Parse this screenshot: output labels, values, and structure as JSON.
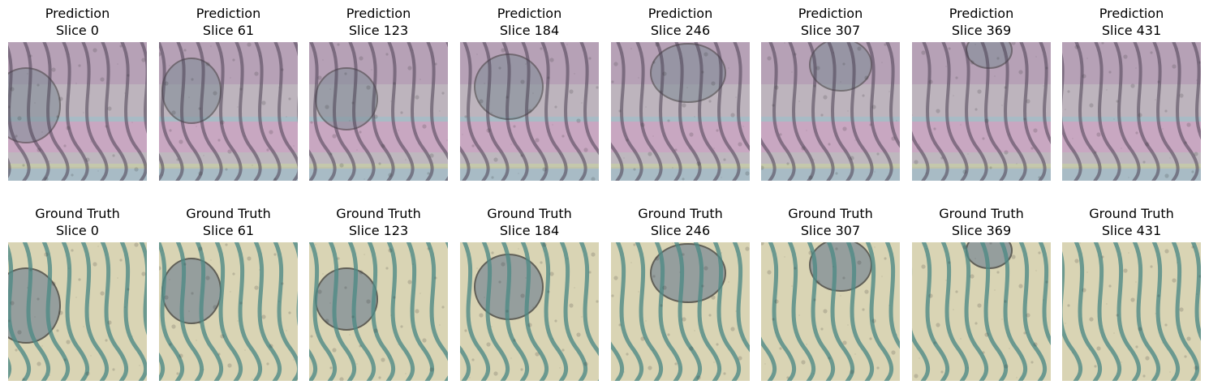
{
  "rows": [
    {
      "row_label": "Prediction",
      "overlay": "prediction",
      "panels": [
        {
          "title": "Prediction",
          "slice": "Slice 0"
        },
        {
          "title": "Prediction",
          "slice": "Slice 61"
        },
        {
          "title": "Prediction",
          "slice": "Slice 123"
        },
        {
          "title": "Prediction",
          "slice": "Slice 184"
        },
        {
          "title": "Prediction",
          "slice": "Slice 246"
        },
        {
          "title": "Prediction",
          "slice": "Slice 307"
        },
        {
          "title": "Prediction",
          "slice": "Slice 369"
        },
        {
          "title": "Prediction",
          "slice": "Slice 431"
        }
      ]
    },
    {
      "row_label": "Ground Truth",
      "overlay": "ground-truth",
      "panels": [
        {
          "title": "Ground Truth",
          "slice": "Slice 0"
        },
        {
          "title": "Ground Truth",
          "slice": "Slice 61"
        },
        {
          "title": "Ground Truth",
          "slice": "Slice 123"
        },
        {
          "title": "Ground Truth",
          "slice": "Slice 184"
        },
        {
          "title": "Ground Truth",
          "slice": "Slice 246"
        },
        {
          "title": "Ground Truth",
          "slice": "Slice 307"
        },
        {
          "title": "Ground Truth",
          "slice": "Slice 369"
        },
        {
          "title": "Ground Truth",
          "slice": "Slice 431"
        }
      ]
    }
  ],
  "colors": {
    "prediction_base": "#b4a8b4",
    "prediction_band_pink": "#d8a6cc",
    "prediction_band_cyan": "#9fcad4",
    "prediction_band_green": "#c8d4a0",
    "prediction_membrane": "#4a3f52",
    "ground_truth_base": "#d9d4b4",
    "ground_truth_membrane": "#4f8a86",
    "organelle_fill": "#7f8c96"
  }
}
